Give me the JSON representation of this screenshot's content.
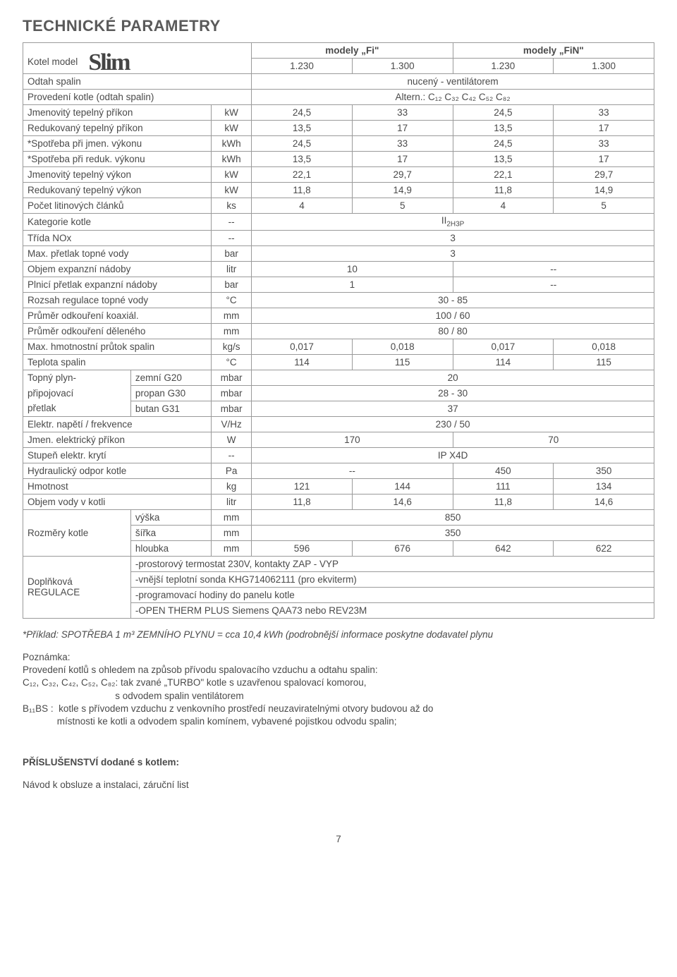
{
  "title": "TECHNICKÉ PARAMETRY",
  "brandLabel": "Kotel model",
  "brandLogo": "Slim",
  "headerGroups": {
    "fi": "modely „Fi\"",
    "fin": "modely „FiN\""
  },
  "headerModels": [
    "1.230",
    "1.300",
    "1.230",
    "1.300"
  ],
  "preRows": [
    {
      "label": "Odtah spalin",
      "value": "nucený - ventilátorem"
    },
    {
      "label": "Provedení kotle (odtah spalin)",
      "value": "Altern.: C₁₂  C₃₂  C₄₂  C₅₂  C₈₂"
    }
  ],
  "rows4": [
    {
      "label": "Jmenovitý tepelný příkon",
      "unit": "kW",
      "v": [
        "24,5",
        "33",
        "24,5",
        "33"
      ]
    },
    {
      "label": "Redukovaný tepelný příkon",
      "unit": "kW",
      "v": [
        "13,5",
        "17",
        "13,5",
        "17"
      ]
    },
    {
      "label": "*Spotřeba při jmen. výkonu",
      "unit": "kWh",
      "v": [
        "24,5",
        "33",
        "24,5",
        "33"
      ]
    },
    {
      "label": "*Spotřeba při reduk. výkonu",
      "unit": "kWh",
      "v": [
        "13,5",
        "17",
        "13,5",
        "17"
      ]
    },
    {
      "label": "Jmenovitý tepelný výkon",
      "unit": "kW",
      "v": [
        "22,1",
        "29,7",
        "22,1",
        "29,7"
      ]
    },
    {
      "label": "Redukovaný tepelný výkon",
      "unit": "kW",
      "v": [
        "11,8",
        "14,9",
        "11,8",
        "14,9"
      ]
    },
    {
      "label": "Počet litinových článků",
      "unit": "ks",
      "v": [
        "4",
        "5",
        "4",
        "5"
      ]
    }
  ],
  "rowsFull": [
    {
      "label": "Kategorie kotle",
      "unit": "--",
      "value": "II 2H3P",
      "sub": true
    },
    {
      "label": "Třída NOx",
      "unit": "--",
      "value": "3"
    },
    {
      "label": "Max. přetlak topné vody",
      "unit": "bar",
      "value": "3"
    }
  ],
  "rows2": [
    {
      "label": "Objem expanzní nádoby",
      "unit": "litr",
      "v": [
        "10",
        "--"
      ]
    },
    {
      "label": "Plnicí přetlak expanzní nádoby",
      "unit": "bar",
      "v": [
        "1",
        "--"
      ]
    }
  ],
  "rowsFull2": [
    {
      "label": "Rozsah regulace topné vody",
      "unit": "°C",
      "value": "30 - 85"
    },
    {
      "label": "Průměr odkouření koaxiál.",
      "unit": "mm",
      "value": "100 / 60"
    },
    {
      "label": "Průměr odkouření děleného",
      "unit": "mm",
      "value": "80 / 80"
    }
  ],
  "rows4b": [
    {
      "label": "Max. hmotnostní průtok spalin",
      "unit": "kg/s",
      "v": [
        "0,017",
        "0,018",
        "0,017",
        "0,018"
      ]
    },
    {
      "label": "Teplota spalin",
      "unit": "°C",
      "v": [
        "114",
        "115",
        "114",
        "115"
      ]
    }
  ],
  "gasSection": {
    "groupLabel1": "Topný plyn-",
    "groupLabel2": "připojovací",
    "groupLabel3": "přetlak",
    "rows": [
      {
        "sub": "zemní G20",
        "unit": "mbar",
        "value": "20"
      },
      {
        "sub": "propan G30",
        "unit": "mbar",
        "value": "28 - 30"
      },
      {
        "sub": "butan  G31",
        "unit": "mbar",
        "value": "37"
      }
    ]
  },
  "rowsFull3": [
    {
      "label": "Elektr. napětí / frekvence",
      "unit": "V/Hz",
      "value": "230 / 50"
    }
  ],
  "row_elec": {
    "label": "Jmen. elektrický příkon",
    "unit": "W",
    "v": [
      "170",
      "70"
    ]
  },
  "rowsFull4": [
    {
      "label": "Stupeň elektr. krytí",
      "unit": "--",
      "value": "IP X4D"
    }
  ],
  "rowHyd": {
    "label": "Hydraulický odpor kotle",
    "unit": "Pa",
    "left": "--",
    "v": [
      "450",
      "350"
    ]
  },
  "rows4c": [
    {
      "label": "Hmotnost",
      "unit": "kg",
      "v": [
        "121",
        "144",
        "111",
        "134"
      ]
    },
    {
      "label": "Objem vody v kotli",
      "unit": "litr",
      "v": [
        "11,8",
        "14,6",
        "11,8",
        "14,6"
      ]
    }
  ],
  "dimSection": {
    "groupLabel": "Rozměry kotle",
    "rows": [
      {
        "sub": "výška",
        "unit": "mm",
        "mode": "full",
        "value": "850"
      },
      {
        "sub": "šířka",
        "unit": "mm",
        "mode": "full",
        "value": "350"
      },
      {
        "sub": "hloubka",
        "unit": "mm",
        "mode": "4",
        "v": [
          "596",
          "676",
          "642",
          "622"
        ]
      }
    ]
  },
  "regSection": {
    "groupLabel": "Doplňková\nREGULACE",
    "lines": [
      "-prostorový termostat 230V, kontakty ZAP - VYP",
      "-vnější teplotní sonda KHG714062111 (pro ekviterm)",
      "-programovací hodiny do panelu kotle",
      "-OPEN THERM PLUS  Siemens QAA73 nebo REV23M"
    ]
  },
  "footnote": "*Příklad: SPOTŘEBA 1 m³ ZEMNÍHO PLYNU = cca 10,4 kWh (podrobnější informace poskytne dodavatel plynu",
  "noteTitle": "Poznámka:",
  "noteLines": [
    "Provedení kotlů s ohledem na způsob přívodu spalovacího vzduchu a odtahu spalin:",
    "C₁₂, C₃₂, C₄₂, C₅₂, C₈₂: tak zvané „TURBO\" kotle s uzavřenou spalovací komorou,",
    "                                   s odvodem spalin ventilátorem",
    "B₁₁BS :  kotle s přívodem vzduchu z venkovního prostředí neuzaviratelnými otvory budovou až do",
    "             místnosti ke kotli a odvodem spalin komínem, vybavené pojistkou odvodu spalin;"
  ],
  "appendixTitle": "PŘÍSLUŠENSTVÍ dodané s kotlem:",
  "appendixLine": "Návod k obsluze a instalaci, záruční list",
  "pageNum": "7",
  "colors": {
    "text": "#4a4a4a",
    "border": "#9a9a9a",
    "background": "#ffffff"
  },
  "colWidths": {
    "labelLeft": 150,
    "labelRight": 112,
    "unit": 56,
    "data": 140
  }
}
